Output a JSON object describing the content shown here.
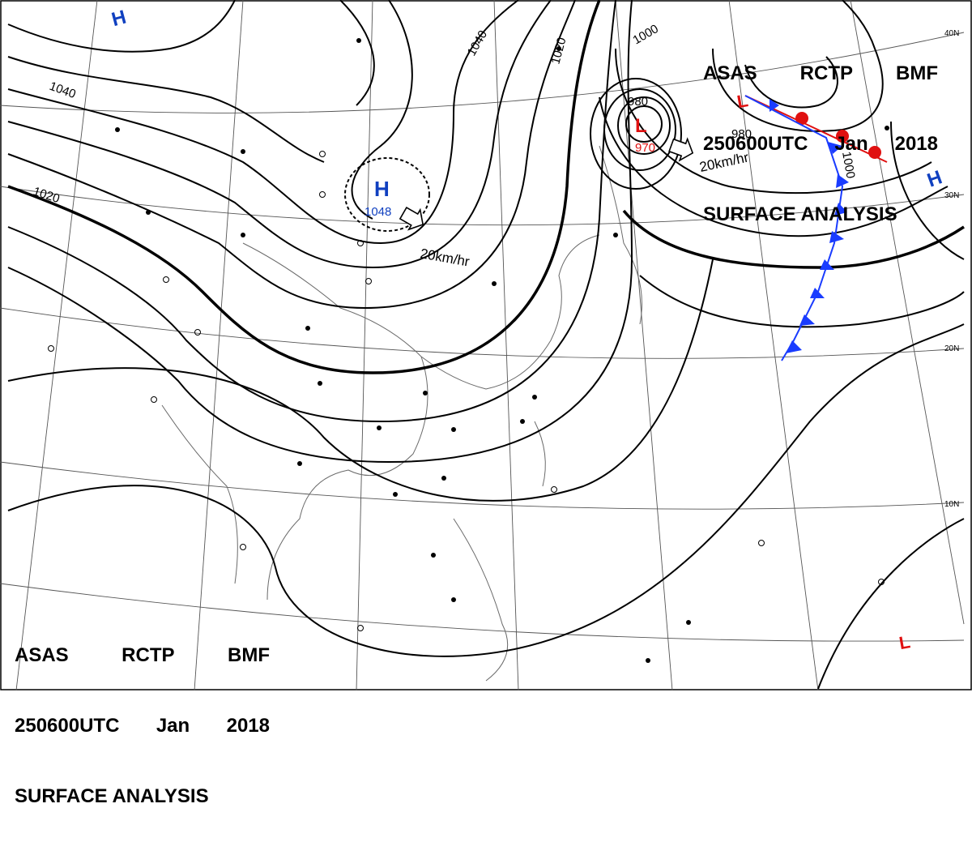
{
  "header": {
    "agency": "ASAS",
    "station": "RCTP",
    "code": "BMF",
    "time": "250600UTC",
    "month": "Jan",
    "year": "2018",
    "product": "SURFACE ANALYSIS"
  },
  "latitude_labels": [
    "40N",
    "30N",
    "20N",
    "10N"
  ],
  "pressure_centers": [
    {
      "type": "H",
      "value": "1048",
      "color": "#1040c0"
    },
    {
      "type": "L",
      "value": "970",
      "color": "#e01010"
    },
    {
      "type": "H",
      "value": "",
      "color": "#1040c0"
    },
    {
      "type": "H",
      "value": "",
      "color": "#1040c0"
    },
    {
      "type": "L",
      "value": "",
      "color": "#e01010"
    },
    {
      "type": "L",
      "value": "",
      "color": "#e01010"
    }
  ],
  "isobar_labels": [
    "1040",
    "1020",
    "1040",
    "1020",
    "1000",
    "980",
    "980",
    "1000"
  ],
  "motion_labels": [
    "20km/hr",
    "20km/hr"
  ],
  "colors": {
    "high": "#1040c0",
    "low": "#e01010",
    "cold_front": "#1a3cff",
    "warm_front": "#e01010",
    "isobar": "#000000",
    "coast": "#666666"
  }
}
